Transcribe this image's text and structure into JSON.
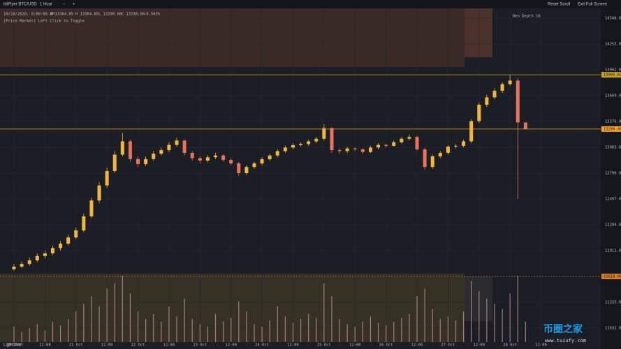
{
  "toolbar": {
    "symbol": "bitFlyer BTC/USD",
    "interval": "1 Hour",
    "zoom_out": "−",
    "zoom_in": "+",
    "reset": "Reset Scroll",
    "exit": "Exit Full Screen"
  },
  "info": {
    "date": "10/28/2020, 8:00:00 AM",
    "open": "O 13364.85",
    "high": "H 13364.85",
    "low": "L 13290.00",
    "close": "C 13290.00",
    "change": "-0.563%",
    "hint": "[Price Marker] Left Click to Toggle",
    "depth": "Ren Depth 10"
  },
  "footer": {
    "brand": "LightChart",
    "watermark": "币圈之家",
    "watermark_url": "www.tuiufy.com"
  },
  "chart_data": {
    "type": "candlestick",
    "up_color": "#f2b63c",
    "down_color": "#e8735a",
    "candles": [
      [
        11700,
        11760,
        11680,
        11729
      ],
      [
        11729,
        11790,
        11710,
        11760
      ],
      [
        11760,
        11830,
        11740,
        11800
      ],
      [
        11800,
        11880,
        11780,
        11850
      ],
      [
        11850,
        11910,
        11820,
        11880
      ],
      [
        11880,
        11970,
        11860,
        11940
      ],
      [
        11940,
        12020,
        11910,
        11990
      ],
      [
        11990,
        12090,
        11970,
        12060
      ],
      [
        12060,
        12170,
        12040,
        12140
      ],
      [
        12140,
        12330,
        12120,
        12300
      ],
      [
        12300,
        12510,
        12280,
        12480
      ],
      [
        12480,
        12690,
        12450,
        12650
      ],
      [
        12650,
        12850,
        12620,
        12814
      ],
      [
        12814,
        13040,
        12790,
        13000
      ],
      [
        13000,
        13249,
        12980,
        13150
      ],
      [
        13150,
        13170,
        12920,
        12950
      ],
      [
        12950,
        12980,
        12860,
        12893
      ],
      [
        12893,
        12980,
        12870,
        12950
      ],
      [
        12950,
        13040,
        12930,
        13010
      ],
      [
        13010,
        13080,
        12990,
        13051
      ],
      [
        13051,
        13140,
        13030,
        13110
      ],
      [
        13110,
        13190,
        13090,
        13160
      ],
      [
        13160,
        13175,
        12990,
        13020
      ],
      [
        13020,
        13040,
        12930,
        12960
      ],
      [
        12960,
        12980,
        12900,
        12932
      ],
      [
        12932,
        12995,
        12910,
        12970
      ],
      [
        12970,
        13020,
        12950,
        12990
      ],
      [
        12990,
        13005,
        12920,
        12940
      ],
      [
        12940,
        12960,
        12880,
        12900
      ],
      [
        12900,
        12920,
        12760,
        12790
      ],
      [
        12790,
        12880,
        12770,
        12860
      ],
      [
        12860,
        12920,
        12840,
        12900
      ],
      [
        12900,
        12970,
        12880,
        12948
      ],
      [
        12948,
        13010,
        12930,
        12990
      ],
      [
        12990,
        13060,
        12970,
        13040
      ],
      [
        13040,
        13100,
        13020,
        13080
      ],
      [
        13080,
        13130,
        13060,
        13107
      ],
      [
        13107,
        13140,
        13090,
        13120
      ],
      [
        13120,
        13170,
        13100,
        13150
      ],
      [
        13150,
        13200,
        13130,
        13180
      ],
      [
        13180,
        13345,
        13160,
        13300
      ],
      [
        13300,
        13310,
        13020,
        13051
      ],
      [
        13051,
        13070,
        13010,
        13040
      ],
      [
        13040,
        13090,
        13020,
        13070
      ],
      [
        13070,
        13085,
        13040,
        13060
      ],
      [
        13060,
        13075,
        13010,
        13030
      ],
      [
        13030,
        13100,
        13020,
        13080
      ],
      [
        13080,
        13130,
        13060,
        13110
      ],
      [
        13110,
        13125,
        13080,
        13100
      ],
      [
        13100,
        13160,
        13090,
        13140
      ],
      [
        13140,
        13200,
        13120,
        13180
      ],
      [
        13180,
        13230,
        13160,
        13200
      ],
      [
        13200,
        13215,
        13040,
        13060
      ],
      [
        13060,
        13080,
        12830,
        12860
      ],
      [
        12860,
        13000,
        12840,
        12980
      ],
      [
        12980,
        13040,
        12960,
        13020
      ],
      [
        13020,
        13110,
        13000,
        13091
      ],
      [
        13091,
        13120,
        13070,
        13100
      ],
      [
        13100,
        13170,
        13080,
        13150
      ],
      [
        13150,
        13400,
        13130,
        13380
      ],
      [
        13380,
        13590,
        13360,
        13566
      ],
      [
        13566,
        13680,
        13540,
        13650
      ],
      [
        13650,
        13750,
        13630,
        13724
      ],
      [
        13724,
        13820,
        13700,
        13800
      ],
      [
        13800,
        13905.83,
        13780,
        13840
      ],
      [
        13840,
        13870,
        12497,
        13364.85
      ],
      [
        13364.85,
        13364.85,
        13290,
        13290
      ]
    ],
    "volume_color": "#c98f94",
    "volume": [
      60,
      40,
      55,
      70,
      45,
      80,
      65,
      90,
      120,
      150,
      180,
      140,
      210,
      230,
      260,
      190,
      120,
      90,
      110,
      80,
      140,
      100,
      170,
      90,
      70,
      60,
      110,
      80,
      95,
      160,
      120,
      70,
      60,
      85,
      140,
      100,
      75,
      90,
      110,
      95,
      230,
      180,
      90,
      70,
      60,
      80,
      100,
      75,
      65,
      80,
      95,
      110,
      180,
      210,
      130,
      90,
      100,
      85,
      120,
      240,
      200,
      170,
      150,
      130,
      190,
      260,
      80
    ],
    "ylim": [
      10874,
      14659
    ],
    "yticks": [
      {
        "value": 14548,
        "label": "14548.00"
      },
      {
        "value": 14255,
        "label": "14255.00"
      },
      {
        "value": 13962,
        "label": "13962.00"
      },
      {
        "value": 13669,
        "label": "13669.00"
      },
      {
        "value": 13376,
        "label": "13376.00"
      },
      {
        "value": 13083,
        "label": "13083.00"
      },
      {
        "value": 12790,
        "label": "12790.00"
      },
      {
        "value": 12497,
        "label": "12497.00"
      },
      {
        "value": 12204,
        "label": "12204.00"
      },
      {
        "value": 11911,
        "label": "11911.00"
      },
      {
        "value": 11618,
        "label": "11618.00"
      },
      {
        "value": 11325,
        "label": "11325.00"
      },
      {
        "value": 11032,
        "label": "11032.00"
      }
    ],
    "xlim": [
      -1.8,
      75.7
    ],
    "xticks": [
      {
        "value": 0,
        "label": "20 Oct"
      },
      {
        "value": 4,
        "label": "12:00"
      },
      {
        "value": 8,
        "label": "21 Oct"
      },
      {
        "value": 12,
        "label": "12:00"
      },
      {
        "value": 16,
        "label": "22 Oct"
      },
      {
        "value": 20,
        "label": "12:00"
      },
      {
        "value": 24,
        "label": "23 Oct"
      },
      {
        "value": 28,
        "label": "12:00"
      },
      {
        "value": 32,
        "label": "24 Oct"
      },
      {
        "value": 36,
        "label": "12:00"
      },
      {
        "value": 40,
        "label": "25 Oct"
      },
      {
        "value": 44,
        "label": "12:00"
      },
      {
        "value": 48,
        "label": "26 Oct"
      },
      {
        "value": 52,
        "label": "12:00"
      },
      {
        "value": 56,
        "label": "27 Oct"
      },
      {
        "value": 60,
        "label": "12:00"
      },
      {
        "value": 64,
        "label": "28 Oct"
      },
      {
        "value": 68,
        "label": "12:00"
      }
    ],
    "grid": true,
    "price_lines": [
      {
        "value": 13905.83,
        "label": "13905.83",
        "color": "#c9a227"
      },
      {
        "value": 13290,
        "label": "13290.00",
        "color": "#f5a623"
      },
      {
        "value": 11618,
        "label": "11618.00",
        "color": "#d9822b"
      }
    ]
  }
}
